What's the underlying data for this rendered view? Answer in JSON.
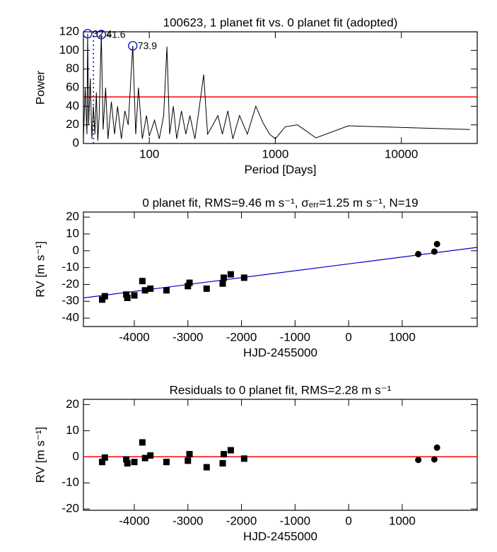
{
  "chart_data": [
    {
      "type": "line",
      "title": "100623,  1 planet fit vs. 0 planet fit (adopted)",
      "xlabel": "Period [Days]",
      "ylabel": "Power",
      "xscale": "log",
      "xlim": [
        30,
        40000
      ],
      "xticks": [
        100,
        1000,
        10000
      ],
      "ylim": [
        0,
        120
      ],
      "yticks": [
        0,
        20,
        40,
        60,
        80,
        100,
        120
      ],
      "color": "#000000",
      "x": [
        30,
        31,
        32,
        32.4,
        33,
        34,
        35,
        36,
        37,
        38,
        39,
        40,
        41.6,
        43,
        45,
        47,
        50,
        53,
        56,
        60,
        64,
        68,
        73.9,
        78,
        82,
        88,
        95,
        100,
        110,
        120,
        130,
        138,
        145,
        155,
        165,
        180,
        195,
        210,
        230,
        250,
        270,
        290,
        320,
        350,
        380,
        420,
        460,
        520,
        600,
        700,
        800,
        900,
        1000,
        1200,
        1500,
        2100,
        3800,
        35000
      ],
      "values": [
        5,
        60,
        10,
        118,
        20,
        70,
        5,
        40,
        10,
        55,
        3,
        30,
        117,
        15,
        60,
        5,
        45,
        10,
        40,
        5,
        35,
        20,
        105,
        10,
        60,
        5,
        30,
        8,
        25,
        5,
        30,
        104,
        10,
        40,
        5,
        35,
        10,
        30,
        5,
        40,
        74,
        10,
        20,
        30,
        10,
        35,
        5,
        30,
        10,
        40,
        22,
        10,
        5,
        18,
        20,
        6,
        19,
        15
      ],
      "hline": 50,
      "hline_color": "#ff0000",
      "vline": 36,
      "vline_color": "#0000cc",
      "peaks": [
        {
          "x": 32.4,
          "y": 118,
          "label": "32.4"
        },
        {
          "x": 41.6,
          "y": 117,
          "label": "41.6"
        },
        {
          "x": 73.9,
          "y": 105,
          "label": "73.9"
        }
      ],
      "peak_color": "#0000cc"
    },
    {
      "type": "scatter",
      "title": "0 planet fit, RMS=9.46 m s⁻¹, σₑᵣᵣ=1.25 m s⁻¹, N=19",
      "xlabel": "HJD-2455000",
      "ylabel": "RV [m s⁻¹]",
      "xlim": [
        -4950,
        2400
      ],
      "xticks": [
        -4000,
        -3000,
        -2000,
        -1000,
        0,
        1000
      ],
      "ylim": [
        -45,
        23
      ],
      "yticks": [
        -40,
        -30,
        -20,
        -10,
        0,
        10,
        20
      ],
      "x": [
        -4600,
        -4550,
        -4150,
        -4130,
        -4000,
        -3850,
        -3800,
        -3700,
        -3400,
        -3000,
        -2970,
        -2650,
        -2350,
        -2330,
        -2200,
        -1950,
        1300,
        1600,
        1650
      ],
      "values": [
        -29,
        -27,
        -26,
        -28,
        -26.5,
        -18,
        -23.5,
        -22.5,
        -23.5,
        -21,
        -19,
        -22.5,
        -19.5,
        -16,
        -14,
        -16,
        -2,
        -0.5,
        4
      ],
      "markers": [
        "square",
        "square",
        "square",
        "square",
        "square",
        "square",
        "square",
        "square",
        "square",
        "square",
        "square",
        "square",
        "square",
        "square",
        "square",
        "square",
        "circle",
        "circle",
        "circle"
      ],
      "fit_line": {
        "x": [
          -4950,
          2400
        ],
        "values": [
          -28,
          2
        ],
        "color": "#0000cc"
      }
    },
    {
      "type": "scatter",
      "title": "Residuals to 0 planet fit, RMS=2.28 m s⁻¹",
      "xlabel": "HJD-2455000",
      "ylabel": "RV [m s⁻¹]",
      "xlim": [
        -4950,
        2400
      ],
      "xticks": [
        -4000,
        -3000,
        -2000,
        -1000,
        0,
        1000
      ],
      "ylim": [
        -20.5,
        22
      ],
      "yticks": [
        -20,
        -10,
        0,
        10,
        20
      ],
      "x": [
        -4600,
        -4550,
        -4150,
        -4130,
        -4000,
        -3850,
        -3800,
        -3700,
        -3400,
        -3000,
        -2970,
        -2650,
        -2350,
        -2330,
        -2200,
        -1950,
        1300,
        1600,
        1650
      ],
      "values": [
        -2,
        -0.3,
        -1,
        -2.5,
        -2,
        5.5,
        -0.5,
        0.5,
        -2,
        -1.5,
        1,
        -4,
        -2.5,
        1,
        2.5,
        -0.7,
        -1.2,
        -1,
        3.5
      ],
      "errors": [
        1.25,
        1.25,
        1.25,
        1.25,
        1.25,
        1.25,
        1.25,
        1.25,
        1.25,
        1.25,
        1.25,
        1.25,
        1.25,
        1.25,
        1.25,
        1.25,
        1.25,
        1.25,
        1.25
      ],
      "markers": [
        "square",
        "square",
        "square",
        "square",
        "square",
        "square",
        "square",
        "square",
        "square",
        "square",
        "square",
        "square",
        "square",
        "square",
        "square",
        "square",
        "circle",
        "circle",
        "circle"
      ],
      "hline": 0,
      "hline_color": "#ff0000"
    }
  ]
}
